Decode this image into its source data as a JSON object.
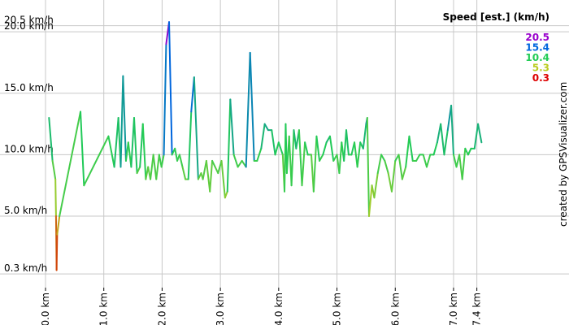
{
  "chart_data": {
    "type": "line",
    "title": "",
    "xlabel": "",
    "ylabel": "",
    "xlim": [
      0,
      8.66
    ],
    "ylim": [
      -0.82,
      21.4
    ],
    "grid": true,
    "x_ticks": [
      {
        "value": 0.0,
        "label": "0.0 km"
      },
      {
        "value": 1.0,
        "label": "1.0 km"
      },
      {
        "value": 2.0,
        "label": "2.0 km"
      },
      {
        "value": 3.0,
        "label": "3.0 km"
      },
      {
        "value": 4.0,
        "label": "4.0 km"
      },
      {
        "value": 5.0,
        "label": "5.0 km"
      },
      {
        "value": 6.0,
        "label": "6.0 km"
      },
      {
        "value": 7.0,
        "label": "7.0 km"
      },
      {
        "value": 7.4,
        "label": "7.4 km"
      }
    ],
    "y_ticks": [
      {
        "value": 0.3,
        "label": "0.3 km/h"
      },
      {
        "value": 5.0,
        "label": "5.0 km/h"
      },
      {
        "value": 10.0,
        "label": "10.0 km/h"
      },
      {
        "value": 15.0,
        "label": "15.0 km/h"
      },
      {
        "value": 20.0,
        "label": "20.0 km/h"
      },
      {
        "value": 20.5,
        "label": "20.5 km/h"
      }
    ],
    "legend": {
      "position": "top-right",
      "title": "Speed [est.] (km/h)",
      "entries": [
        {
          "label": "20.5",
          "color": "#9900cc"
        },
        {
          "label": "15.4",
          "color": "#0066dd"
        },
        {
          "label": "10.4",
          "color": "#22cc55"
        },
        {
          "label": "5.3",
          "color": "#bbcc22"
        },
        {
          "label": "0.3",
          "color": "#dd0000"
        }
      ]
    },
    "credit": "created by GPSVisualizer.com",
    "color_scale": {
      "min": 0.3,
      "max": 20.5,
      "stops": [
        {
          "v": 0.3,
          "color": "#dd0000"
        },
        {
          "v": 5.3,
          "color": "#bbcc22"
        },
        {
          "v": 10.4,
          "color": "#22cc55"
        },
        {
          "v": 15.4,
          "color": "#0066dd"
        },
        {
          "v": 20.5,
          "color": "#9900cc"
        }
      ]
    },
    "series": [
      {
        "x": [
          0.06,
          0.12,
          0.17,
          0.18,
          0.19,
          0.2,
          0.24,
          0.6,
          0.66,
          1.08,
          1.18,
          1.25,
          1.29,
          1.33,
          1.38,
          1.42,
          1.47,
          1.52,
          1.57,
          1.62,
          1.67,
          1.72,
          1.76,
          1.8,
          1.85,
          1.9,
          1.95,
          1.99,
          2.03,
          2.07,
          2.12,
          2.17,
          2.22,
          2.26,
          2.3,
          2.35,
          2.4,
          2.45,
          2.5,
          2.55,
          2.62,
          2.67,
          2.7,
          2.76,
          2.82,
          2.86,
          2.91,
          2.96,
          3.02,
          3.08,
          3.12,
          3.17,
          3.23,
          3.3,
          3.37,
          3.44,
          3.51,
          3.58,
          3.63,
          3.7,
          3.76,
          3.82,
          3.88,
          3.94,
          4.0,
          4.07,
          4.1,
          4.12,
          4.14,
          4.18,
          4.22,
          4.26,
          4.3,
          4.35,
          4.4,
          4.45,
          4.5,
          4.56,
          4.6,
          4.65,
          4.7,
          4.76,
          4.82,
          4.88,
          4.94,
          5.0,
          5.04,
          5.08,
          5.12,
          5.16,
          5.2,
          5.25,
          5.3,
          5.35,
          5.4,
          5.45,
          5.5,
          5.52,
          5.55,
          5.6,
          5.64,
          5.7,
          5.76,
          5.82,
          5.88,
          5.94,
          6.0,
          6.06,
          6.12,
          6.18,
          6.24,
          6.3,
          6.36,
          6.42,
          6.48,
          6.54,
          6.6,
          6.66,
          6.72,
          6.78,
          6.84,
          6.9,
          6.96,
          7.0,
          7.05,
          7.1,
          7.15,
          7.2,
          7.25,
          7.3,
          7.36,
          7.42,
          7.48
        ],
        "y": [
          13.0,
          9.5,
          8.0,
          5.0,
          0.6,
          3.5,
          5.0,
          13.5,
          7.5,
          11.5,
          9.0,
          13.0,
          9.0,
          16.4,
          9.5,
          11.0,
          9.0,
          13.0,
          8.5,
          9.0,
          12.5,
          8.0,
          9.0,
          8.0,
          10.0,
          8.0,
          10.0,
          9.0,
          10.0,
          19.0,
          20.8,
          10.0,
          10.5,
          9.5,
          10.0,
          9.0,
          8.0,
          8.0,
          13.5,
          16.3,
          8.0,
          8.5,
          8.0,
          9.5,
          7.0,
          9.5,
          9.0,
          8.5,
          9.5,
          6.5,
          7.0,
          14.5,
          10.0,
          9.0,
          9.5,
          9.0,
          18.3,
          9.5,
          9.5,
          10.5,
          12.5,
          12.0,
          12.0,
          10.0,
          11.0,
          10.0,
          7.0,
          12.5,
          8.5,
          11.5,
          7.5,
          12.0,
          10.5,
          12.0,
          7.5,
          11.0,
          10.0,
          10.0,
          7.0,
          11.5,
          9.5,
          10.0,
          11.0,
          11.5,
          9.5,
          10.0,
          8.5,
          11.0,
          9.5,
          12.0,
          10.0,
          10.0,
          11.0,
          9.0,
          11.0,
          10.5,
          12.5,
          13.0,
          5.0,
          7.5,
          6.5,
          8.5,
          10.0,
          9.5,
          8.5,
          7.0,
          9.5,
          10.0,
          8.0,
          9.0,
          11.5,
          9.5,
          9.5,
          10.0,
          10.0,
          9.0,
          10.0,
          10.0,
          11.0,
          12.5,
          10.0,
          12.0,
          14.0,
          10.0,
          9.0,
          10.0,
          8.0,
          10.5,
          10.0,
          10.5,
          10.5,
          12.5,
          11.0
        ]
      }
    ]
  }
}
